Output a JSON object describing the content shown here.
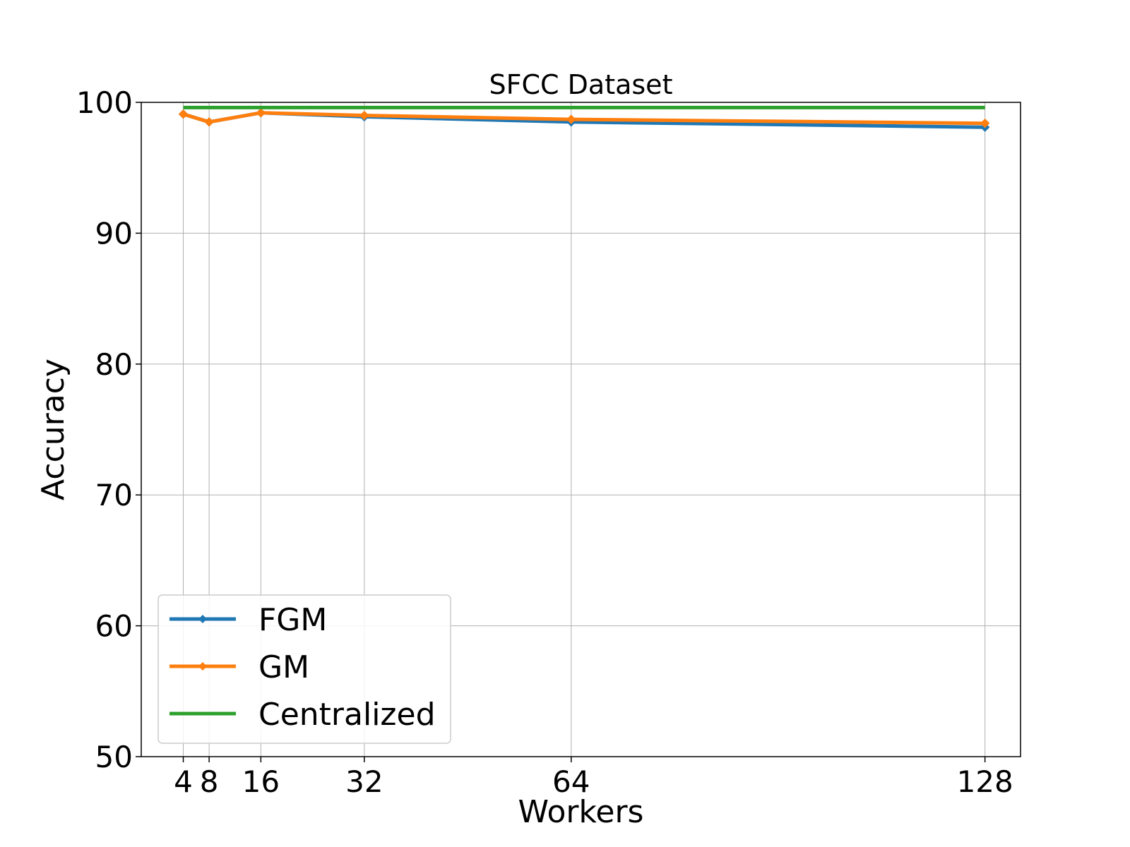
{
  "chart_data": {
    "type": "line",
    "title": "SFCC Dataset",
    "xlabel": "Workers",
    "ylabel": "Accuracy",
    "x": [
      4,
      8,
      16,
      32,
      64,
      128
    ],
    "xlim": [
      -2.5,
      133.5
    ],
    "ylim": [
      50,
      100
    ],
    "xticks": [
      "4",
      "8",
      "16",
      "32",
      "64",
      "128"
    ],
    "yticks": [
      "50",
      "60",
      "70",
      "80",
      "90",
      "100"
    ],
    "grid": true,
    "legend_position": "lower-left",
    "series": [
      {
        "name": "FGM",
        "color": "#1f77b4",
        "marker": "diamond",
        "values": [
          99.1,
          98.5,
          99.2,
          98.9,
          98.5,
          98.1
        ]
      },
      {
        "name": "GM",
        "color": "#ff7f0e",
        "marker": "diamond",
        "values": [
          99.1,
          98.5,
          99.2,
          99.0,
          98.7,
          98.4
        ]
      },
      {
        "name": "Centralized",
        "color": "#2ca02c",
        "marker": "none",
        "values": [
          99.6,
          99.6,
          99.6,
          99.6,
          99.6,
          99.6
        ]
      }
    ]
  }
}
